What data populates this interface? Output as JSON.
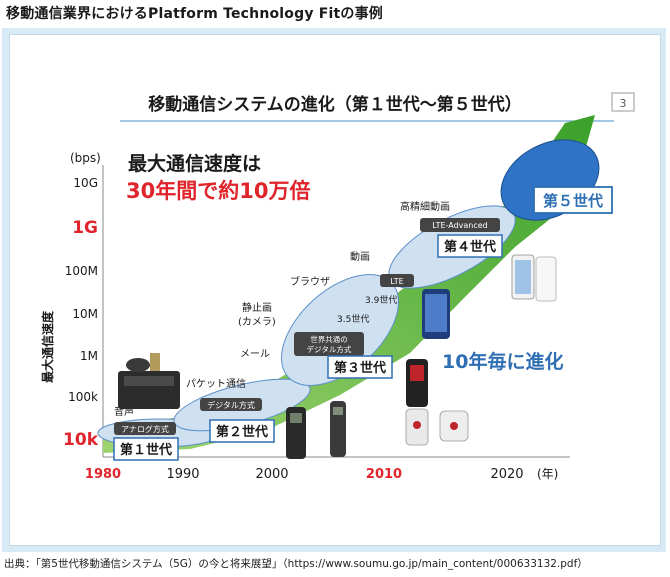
{
  "page_title": "移動通信業界におけるPlatform Technology Fitの事例",
  "slide": {
    "title": "移動通信システムの進化（第１世代〜第５世代）",
    "page_number": "3",
    "headline": "最大通信速度は",
    "headline_highlight": "30年間で約10万倍",
    "side_note": "10年毎に進化"
  },
  "colors": {
    "red": "#e0242b",
    "green": "#6ec03a",
    "bubble": "#cfe0f1",
    "bubble_dark": "#2f73c6",
    "label_blue": "#2f6fb4",
    "text_dark": "#1a1a1a"
  },
  "chart_data": {
    "type": "area",
    "title": "",
    "ylabel": "最大通信速度",
    "y_unit": "(bps)",
    "x_unit": "(年)",
    "x_ticks": [
      "1980",
      "1990",
      "2000",
      "2010",
      "2020"
    ],
    "x_ticks_highlighted": [
      "1980",
      "2010"
    ],
    "y_ticks": [
      "10G",
      "1G",
      "100M",
      "10M",
      "1M",
      "100k",
      "10k"
    ],
    "y_ticks_highlighted": [
      "10k",
      "1G"
    ],
    "xlim": [
      1980,
      2025
    ],
    "generations": [
      {
        "label": "第１世代",
        "method": "アナログ方式",
        "service": "音声",
        "year_start": 1980
      },
      {
        "label": "第２世代",
        "method": "デジタル方式",
        "service": "パケット通信",
        "year_start": 1993
      },
      {
        "label": "第３世代",
        "method": "世界共通の\nデジタル方式",
        "service": "メール",
        "year_start": 2001
      },
      {
        "label": "第４世代",
        "method": "LTE-Advanced",
        "service": "高精細動画",
        "year_start": 2010
      },
      {
        "label": "第５世代",
        "method": "",
        "service": "",
        "year_start": 2020
      }
    ],
    "annotations": [
      "ブラウザ",
      "静止画\n(カメラ)",
      "動画",
      "LTE",
      "3.9世代",
      "3.5世代"
    ]
  },
  "source": "出典：「第5世代移動通信システム（5G）の今と将来展望」（https://www.soumu.go.jp/main_content/000633132.pdf）"
}
